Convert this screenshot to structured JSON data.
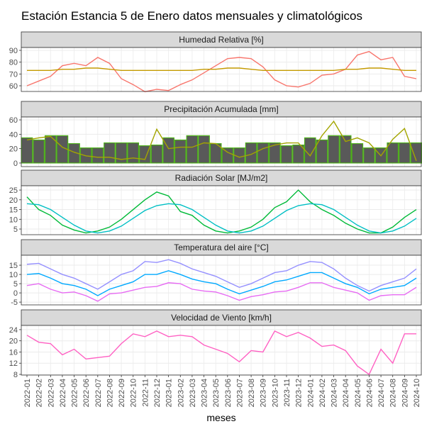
{
  "title": "Estación Estancia 5 de Enero datos mensuales y climatológicos",
  "x_label": "meses",
  "chart_data": [
    {
      "type": "line",
      "title": "Humedad Relativa [%]",
      "ylim": [
        55.2,
        92.4
      ],
      "yticks": [
        60,
        70,
        80,
        90
      ],
      "grid": true,
      "series": [
        {
          "color": "#f8766d",
          "values": [
            60,
            64,
            68,
            77,
            79,
            77,
            84,
            79,
            66,
            61,
            55,
            57,
            56,
            61,
            65,
            71,
            77,
            83,
            84,
            83,
            76,
            65,
            60,
            59,
            62,
            69,
            70,
            74,
            86,
            89,
            82,
            84,
            68,
            66
          ]
        },
        {
          "color": "#c49a00",
          "values": [
            73,
            73,
            73,
            74,
            74,
            75,
            75,
            74,
            73,
            73,
            73,
            73,
            73,
            73,
            73,
            74,
            74,
            75,
            75,
            74,
            73,
            73,
            73,
            73,
            73,
            73,
            73,
            74,
            74,
            75,
            75,
            74,
            73,
            73
          ]
        }
      ]
    },
    {
      "type": "combo",
      "title": "Precipitación Acumulada [mm]",
      "ylim": [
        -5,
        64
      ],
      "yticks": [
        0,
        20,
        40,
        60
      ],
      "grid": true,
      "series": [
        {
          "mark": "bar",
          "color": "#595959",
          "stroke": "#4daf1a",
          "values": [
            35,
            32,
            38,
            38,
            27,
            21,
            21,
            28,
            28,
            28,
            24,
            25,
            35,
            32,
            38,
            38,
            27,
            21,
            21,
            28,
            28,
            28,
            24,
            25,
            35,
            32,
            38,
            38,
            27,
            21,
            21,
            28,
            28,
            28
          ]
        },
        {
          "mark": "line",
          "color": "#a3a500",
          "values": [
            32,
            35,
            37,
            22,
            15,
            10,
            8,
            8,
            5,
            7,
            5,
            47,
            20,
            22,
            22,
            28,
            27,
            15,
            8,
            12,
            20,
            25,
            28,
            28,
            10,
            38,
            58,
            30,
            35,
            28,
            10,
            33,
            48,
            3
          ]
        }
      ]
    },
    {
      "type": "line",
      "title": "Radiación Solar [MJ/m2]",
      "ylim": [
        2.1,
        27.2
      ],
      "yticks": [
        5,
        10,
        15,
        20,
        25
      ],
      "grid": true,
      "series": [
        {
          "color": "#00ba38",
          "values": [
            21.5,
            15,
            12,
            7,
            4.5,
            3,
            4,
            6,
            10,
            15,
            20,
            24,
            22,
            14,
            12,
            7,
            4,
            3,
            4,
            6,
            10,
            16,
            19,
            25,
            19,
            15,
            12,
            8,
            5,
            3,
            3,
            6,
            11,
            15
          ]
        },
        {
          "color": "#00bfc4",
          "values": [
            18,
            17.5,
            15,
            11,
            7,
            4,
            3,
            4,
            6.5,
            10.5,
            14.5,
            17,
            18,
            17.5,
            15,
            11,
            7,
            4,
            3,
            4,
            6.5,
            10.5,
            14.5,
            17,
            18,
            17.5,
            15,
            11,
            7,
            4,
            3,
            4,
            6.5,
            10.5
          ]
        }
      ]
    },
    {
      "type": "line",
      "title": "Temperatura del aire [°C]",
      "ylim": [
        -6.5,
        20.4
      ],
      "yticks": [
        -5,
        0,
        5,
        10,
        15
      ],
      "grid": true,
      "series": [
        {
          "color": "#9590ff",
          "values": [
            15.5,
            16,
            13,
            10,
            8,
            5,
            2,
            6,
            10,
            12,
            17,
            16.5,
            18,
            16,
            13,
            11,
            9,
            6,
            3,
            5,
            8,
            11,
            12,
            15,
            17,
            16.5,
            13,
            8,
            4,
            1,
            4,
            6,
            8,
            13
          ]
        },
        {
          "color": "#00a9ff",
          "values": [
            10,
            10.5,
            8,
            5,
            4,
            2,
            -1.5,
            2,
            4,
            6,
            10,
            10,
            12,
            10,
            7.5,
            6,
            5,
            2,
            -0.5,
            1.5,
            3.5,
            6,
            7,
            9,
            11,
            11,
            8,
            5,
            3,
            -0.5,
            2,
            3,
            4,
            8
          ]
        },
        {
          "color": "#e76bf3",
          "values": [
            4,
            5,
            2,
            0,
            0.5,
            -1.5,
            -4.5,
            -0.5,
            0,
            1.5,
            3,
            3.5,
            5.5,
            5,
            2,
            1,
            0.5,
            -1.5,
            -4,
            -2,
            -1,
            0.5,
            1,
            3,
            5.5,
            5.5,
            3,
            1.5,
            0,
            -4,
            -1.5,
            -1,
            -1,
            3
          ]
        }
      ]
    },
    {
      "type": "line",
      "title": "Velocidad de Viento [km/h]",
      "ylim": [
        7.75,
        25.5
      ],
      "yticks": [
        8,
        12,
        16,
        20,
        24
      ],
      "grid": true,
      "categories": [
        "2022-01",
        "2022-02",
        "2022-03",
        "2022-04",
        "2022-05",
        "2022-06",
        "2022-07",
        "2022-08",
        "2022-09",
        "2022-10",
        "2022-11",
        "2022-12",
        "2023-01",
        "2023-02",
        "2023-03",
        "2023-04",
        "2023-05",
        "2023-06",
        "2023-07",
        "2023-08",
        "2023-09",
        "2023-10",
        "2023-11",
        "2023-12",
        "2024-01",
        "2024-02",
        "2024-03",
        "2024-04",
        "2024-05",
        "2024-06",
        "2024-07",
        "2024-08",
        "2024-09",
        "2024-10"
      ],
      "series": [
        {
          "color": "#ff61c3",
          "values": [
            22,
            19.5,
            19,
            15,
            17,
            13.5,
            14,
            14.5,
            19,
            22.5,
            21.5,
            23.5,
            21.5,
            22,
            21.5,
            18.5,
            17,
            15.5,
            12.5,
            16.5,
            16,
            23.5,
            21.5,
            23,
            21,
            18,
            18.5,
            16.5,
            11,
            8,
            17,
            12,
            22.5,
            22.5
          ]
        }
      ]
    }
  ]
}
